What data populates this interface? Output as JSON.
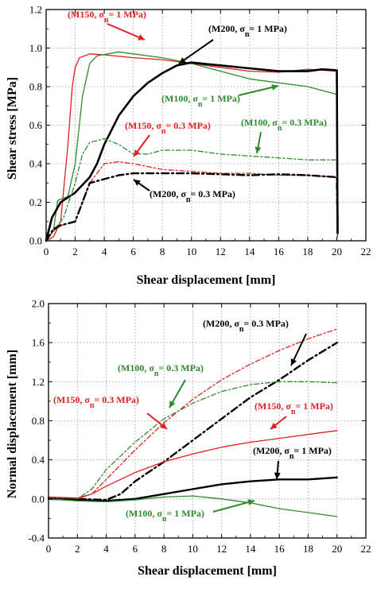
{
  "chart_data": [
    {
      "type": "line",
      "xlabel": "Shear displacement [mm]",
      "ylabel": "Shear stress [MPa]",
      "xlim": [
        0,
        22
      ],
      "ylim": [
        0,
        1.2
      ],
      "xticks": [
        "0",
        "2",
        "4",
        "6",
        "8",
        "10",
        "12",
        "14",
        "16",
        "18",
        "20",
        "22"
      ],
      "yticks": [
        "0.0",
        "0.2",
        "0.4",
        "0.6",
        "0.8",
        "1.0",
        "1.2"
      ],
      "grid": true,
      "series": [
        {
          "color": "#e02020",
          "dash": "solid",
          "width": 1.3,
          "points": [
            [
              0,
              0
            ],
            [
              0.5,
              0.02
            ],
            [
              1,
              0.1
            ],
            [
              1.5,
              0.5
            ],
            [
              1.8,
              0.8
            ],
            [
              2,
              0.9
            ],
            [
              2.3,
              0.95
            ],
            [
              3,
              0.97
            ],
            [
              4,
              0.965
            ],
            [
              6,
              0.95
            ],
            [
              8,
              0.94
            ],
            [
              10,
              0.92
            ],
            [
              12,
              0.9
            ],
            [
              14,
              0.88
            ],
            [
              16,
              0.875
            ],
            [
              18,
              0.89
            ],
            [
              20,
              0.88
            ],
            [
              20.05,
              0.02
            ]
          ]
        },
        {
          "color": "#2e8b2e",
          "dash": "solid",
          "width": 1.3,
          "points": [
            [
              0,
              0
            ],
            [
              0.5,
              0.05
            ],
            [
              0.8,
              0.21
            ],
            [
              1.5,
              0.23
            ],
            [
              2,
              0.4
            ],
            [
              2.5,
              0.75
            ],
            [
              3,
              0.92
            ],
            [
              3.5,
              0.96
            ],
            [
              5,
              0.98
            ],
            [
              6,
              0.97
            ],
            [
              8,
              0.95
            ],
            [
              10,
              0.92
            ],
            [
              12,
              0.88
            ],
            [
              14,
              0.84
            ],
            [
              16,
              0.82
            ],
            [
              18,
              0.8
            ],
            [
              20,
              0.76
            ],
            [
              20.1,
              0.04
            ]
          ]
        },
        {
          "color": "#000000",
          "dash": "solid",
          "width": 2.6,
          "points": [
            [
              0,
              0
            ],
            [
              0.4,
              0.12
            ],
            [
              1,
              0.2
            ],
            [
              2,
              0.25
            ],
            [
              3,
              0.33
            ],
            [
              3.5,
              0.4
            ],
            [
              4,
              0.5
            ],
            [
              5,
              0.65
            ],
            [
              6,
              0.75
            ],
            [
              7,
              0.82
            ],
            [
              8,
              0.87
            ],
            [
              9,
              0.91
            ],
            [
              10,
              0.925
            ],
            [
              12,
              0.91
            ],
            [
              14,
              0.895
            ],
            [
              16,
              0.88
            ],
            [
              18,
              0.88
            ],
            [
              19,
              0.89
            ],
            [
              20,
              0.885
            ],
            [
              20.05,
              0.04
            ]
          ]
        },
        {
          "color": "#e02020",
          "dash": "6,3,2,3",
          "width": 1.3,
          "points": [
            [
              0,
              0
            ],
            [
              0.5,
              0.05
            ],
            [
              1,
              0.08
            ],
            [
              2,
              0.1
            ],
            [
              2.5,
              0.2
            ],
            [
              3,
              0.3
            ],
            [
              3.5,
              0.35
            ],
            [
              4,
              0.4
            ],
            [
              5,
              0.41
            ],
            [
              6,
              0.4
            ],
            [
              8,
              0.37
            ],
            [
              10,
              0.36
            ],
            [
              12,
              0.35
            ],
            [
              14,
              0.35
            ],
            [
              16,
              0.34
            ],
            [
              18,
              0.34
            ],
            [
              20,
              0.33
            ]
          ]
        },
        {
          "color": "#2e8b2e",
          "dash": "6,3,2,3",
          "width": 1.3,
          "points": [
            [
              0,
              0
            ],
            [
              0.5,
              0.05
            ],
            [
              1.2,
              0.12
            ],
            [
              2,
              0.3
            ],
            [
              2.5,
              0.45
            ],
            [
              3,
              0.51
            ],
            [
              4,
              0.53
            ],
            [
              5,
              0.5
            ],
            [
              6,
              0.45
            ],
            [
              7,
              0.45
            ],
            [
              8,
              0.47
            ],
            [
              10,
              0.47
            ],
            [
              12,
              0.45
            ],
            [
              14,
              0.44
            ],
            [
              16,
              0.43
            ],
            [
              18,
              0.42
            ],
            [
              20,
              0.42
            ]
          ]
        },
        {
          "color": "#000000",
          "dash": "9,4,2,4",
          "width": 2.4,
          "points": [
            [
              0,
              0
            ],
            [
              0.5,
              0.06
            ],
            [
              1,
              0.08
            ],
            [
              2,
              0.1
            ],
            [
              3,
              0.3
            ],
            [
              4,
              0.32
            ],
            [
              5,
              0.34
            ],
            [
              6,
              0.35
            ],
            [
              8,
              0.35
            ],
            [
              10,
              0.35
            ],
            [
              12,
              0.345
            ],
            [
              14,
              0.34
            ],
            [
              16,
              0.345
            ],
            [
              18,
              0.34
            ],
            [
              20,
              0.33
            ],
            [
              20.05,
              0.04
            ]
          ]
        }
      ],
      "annotations": [
        {
          "text": "(M150, σn= 1 MPa)",
          "color": "#e02020"
        },
        {
          "text": "(M200, σn= 1 MPa)",
          "color": "#000000"
        },
        {
          "text": "(M100, σn= 1 MPa)",
          "color": "#2e8b2e"
        },
        {
          "text": "(M150, σn= 0.3 MPa)",
          "color": "#e02020"
        },
        {
          "text": "(M100, σn= 0.3 MPa)",
          "color": "#2e8b2e"
        },
        {
          "text": "(M200, σn= 0.3 MPa)",
          "color": "#000000"
        }
      ]
    },
    {
      "type": "line",
      "xlabel": "Shear displacement [mm]",
      "ylabel": "Normal displacement [mm]",
      "xlim": [
        0,
        22
      ],
      "ylim": [
        -0.4,
        2.0
      ],
      "xticks": [
        "0",
        "2",
        "4",
        "6",
        "8",
        "10",
        "12",
        "14",
        "16",
        "18",
        "20",
        "22"
      ],
      "yticks": [
        "-0.4",
        "0.0",
        "0.4",
        "0.8",
        "1.2",
        "1.6",
        "2.0"
      ],
      "grid": true,
      "series": [
        {
          "color": "#000000",
          "dash": "9,4,2,4",
          "width": 2.4,
          "points": [
            [
              0,
              0.01
            ],
            [
              2,
              0
            ],
            [
              4,
              -0.01
            ],
            [
              5,
              0.05
            ],
            [
              6,
              0.18
            ],
            [
              8,
              0.38
            ],
            [
              10,
              0.6
            ],
            [
              12,
              0.82
            ],
            [
              14,
              1.04
            ],
            [
              16,
              1.22
            ],
            [
              18,
              1.42
            ],
            [
              20,
              1.6
            ]
          ]
        },
        {
          "color": "#e02020",
          "dash": "6,3,2,3",
          "width": 1.3,
          "points": [
            [
              0,
              0.01
            ],
            [
              2,
              0
            ],
            [
              3,
              0.05
            ],
            [
              4,
              0.2
            ],
            [
              6,
              0.5
            ],
            [
              8,
              0.78
            ],
            [
              10,
              1.02
            ],
            [
              12,
              1.22
            ],
            [
              14,
              1.38
            ],
            [
              16,
              1.52
            ],
            [
              18,
              1.64
            ],
            [
              20,
              1.74
            ]
          ]
        },
        {
          "color": "#2e8b2e",
          "dash": "6,3,2,3",
          "width": 1.3,
          "points": [
            [
              0,
              0.01
            ],
            [
              2,
              0
            ],
            [
              3,
              0.1
            ],
            [
              4,
              0.3
            ],
            [
              6,
              0.58
            ],
            [
              8,
              0.82
            ],
            [
              10,
              0.98
            ],
            [
              12,
              1.1
            ],
            [
              14,
              1.17
            ],
            [
              16,
              1.2
            ],
            [
              18,
              1.2
            ],
            [
              20,
              1.19
            ]
          ]
        },
        {
          "color": "#e02020",
          "dash": "solid",
          "width": 1.3,
          "points": [
            [
              0,
              0.02
            ],
            [
              2,
              0.01
            ],
            [
              3,
              0.05
            ],
            [
              4,
              0.13
            ],
            [
              6,
              0.27
            ],
            [
              8,
              0.38
            ],
            [
              10,
              0.46
            ],
            [
              12,
              0.53
            ],
            [
              14,
              0.58
            ],
            [
              16,
              0.62
            ],
            [
              18,
              0.66
            ],
            [
              20,
              0.7
            ]
          ]
        },
        {
          "color": "#000000",
          "dash": "solid",
          "width": 2.4,
          "points": [
            [
              0,
              0
            ],
            [
              2,
              -0.01
            ],
            [
              4,
              -0.02
            ],
            [
              6,
              0
            ],
            [
              8,
              0.05
            ],
            [
              10,
              0.1
            ],
            [
              12,
              0.15
            ],
            [
              14,
              0.18
            ],
            [
              16,
              0.2
            ],
            [
              18,
              0.2
            ],
            [
              20,
              0.22
            ]
          ]
        },
        {
          "color": "#2e8b2e",
          "dash": "solid",
          "width": 1.3,
          "points": [
            [
              0,
              0
            ],
            [
              2,
              -0.02
            ],
            [
              4,
              -0.03
            ],
            [
              6,
              -0.01
            ],
            [
              8,
              0.02
            ],
            [
              10,
              0.03
            ],
            [
              12,
              0
            ],
            [
              14,
              -0.04
            ],
            [
              16,
              -0.1
            ],
            [
              18,
              -0.14
            ],
            [
              20,
              -0.18
            ]
          ]
        }
      ],
      "annotations": [
        {
          "text": "(M200, σn= 0.3 MPa)",
          "color": "#000000"
        },
        {
          "text": "(M100, σn= 0.3 MPa)",
          "color": "#2e8b2e"
        },
        {
          "text": "(M150, σn= 1 MPa)",
          "color": "#e02020"
        },
        {
          "text": "(M150, σn= 0.3 MPa)",
          "color": "#e02020"
        },
        {
          "text": "(M200, σn= 1 MPa)",
          "color": "#000000"
        },
        {
          "text": "(M100, σn= 1 MPa)",
          "color": "#2e8b2e"
        }
      ]
    }
  ]
}
